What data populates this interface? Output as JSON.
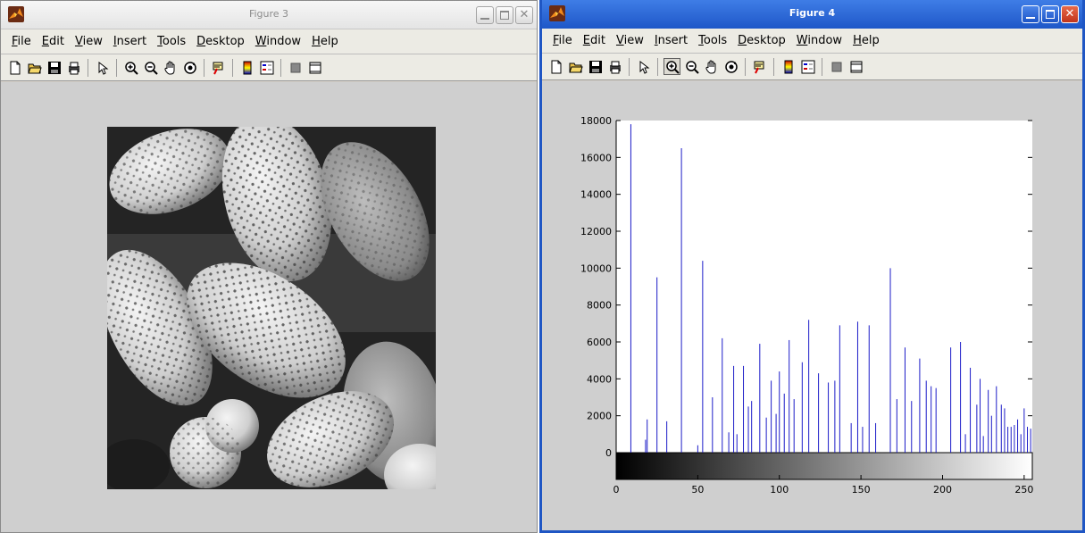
{
  "figure3": {
    "title": "Figure 3",
    "menu": [
      "File",
      "Edit",
      "View",
      "Insert",
      "Tools",
      "Desktop",
      "Window",
      "Help"
    ],
    "menu_mnemonics": [
      "F",
      "E",
      "V",
      "I",
      "T",
      "D",
      "W",
      "H"
    ]
  },
  "figure4": {
    "title": "Figure 4",
    "menu": [
      "File",
      "Edit",
      "View",
      "Insert",
      "Tools",
      "Desktop",
      "Window",
      "Help"
    ],
    "menu_mnemonics": [
      "F",
      "E",
      "V",
      "I",
      "T",
      "D",
      "W",
      "H"
    ]
  },
  "toolbar_icons": [
    "new-figure-icon",
    "open-file-icon",
    "save-icon",
    "print-icon",
    "separator",
    "select-arrow-icon",
    "separator",
    "zoom-in-icon",
    "zoom-out-icon",
    "pan-hand-icon",
    "rotate-3d-icon",
    "separator",
    "data-cursor-icon",
    "separator",
    "colorbar-icon",
    "legend-icon",
    "separator",
    "hide-plot-tools-icon",
    "show-plot-tools-icon"
  ],
  "colors": {
    "stem": "#1c1cc8",
    "active_titlebar": "#2a63d6",
    "inactive_title_text": "#8c8c8c",
    "figure_background": "#cfcfcf"
  },
  "chart_data": {
    "type": "bar",
    "subtype": "stem-histogram",
    "title": "",
    "xlabel": "",
    "ylabel": "",
    "xlim": [
      0,
      255
    ],
    "ylim": [
      0,
      18000
    ],
    "x_ticks": [
      0,
      50,
      100,
      150,
      200,
      250
    ],
    "y_ticks": [
      0,
      2000,
      4000,
      6000,
      8000,
      10000,
      12000,
      14000,
      16000,
      18000
    ],
    "grid": false,
    "colorbar": "grayscale gradient below x-axis",
    "series": [
      {
        "x": [
          9,
          18,
          19,
          25,
          31,
          40,
          50,
          53,
          59,
          65,
          69,
          72,
          74,
          78,
          81,
          83,
          88,
          92,
          95,
          98,
          100,
          103,
          106,
          109,
          114,
          118,
          124,
          130,
          134,
          137,
          144,
          148,
          151,
          155,
          159,
          168,
          172,
          177,
          181,
          186,
          190,
          193,
          196,
          205,
          211,
          214,
          217,
          221,
          223,
          225,
          228,
          230,
          233,
          236,
          238,
          240,
          242,
          244,
          246,
          248,
          250,
          252,
          254
        ],
        "values": [
          17800,
          700,
          1800,
          9500,
          1700,
          16500,
          400,
          10400,
          3000,
          6200,
          1100,
          4700,
          1000,
          4700,
          2500,
          2800,
          5900,
          1900,
          3900,
          2100,
          4400,
          3200,
          6100,
          2900,
          4900,
          7200,
          4300,
          3800,
          3900,
          6900,
          1600,
          7100,
          1400,
          6900,
          1600,
          10000,
          2900,
          5700,
          2800,
          5100,
          3900,
          3600,
          3500,
          5700,
          6000,
          1000,
          4600,
          2600,
          4000,
          900,
          3400,
          2000,
          3600,
          2600,
          2400,
          1400,
          1400,
          1500,
          1800,
          1000,
          2400,
          1400,
          1300
        ]
      }
    ]
  }
}
